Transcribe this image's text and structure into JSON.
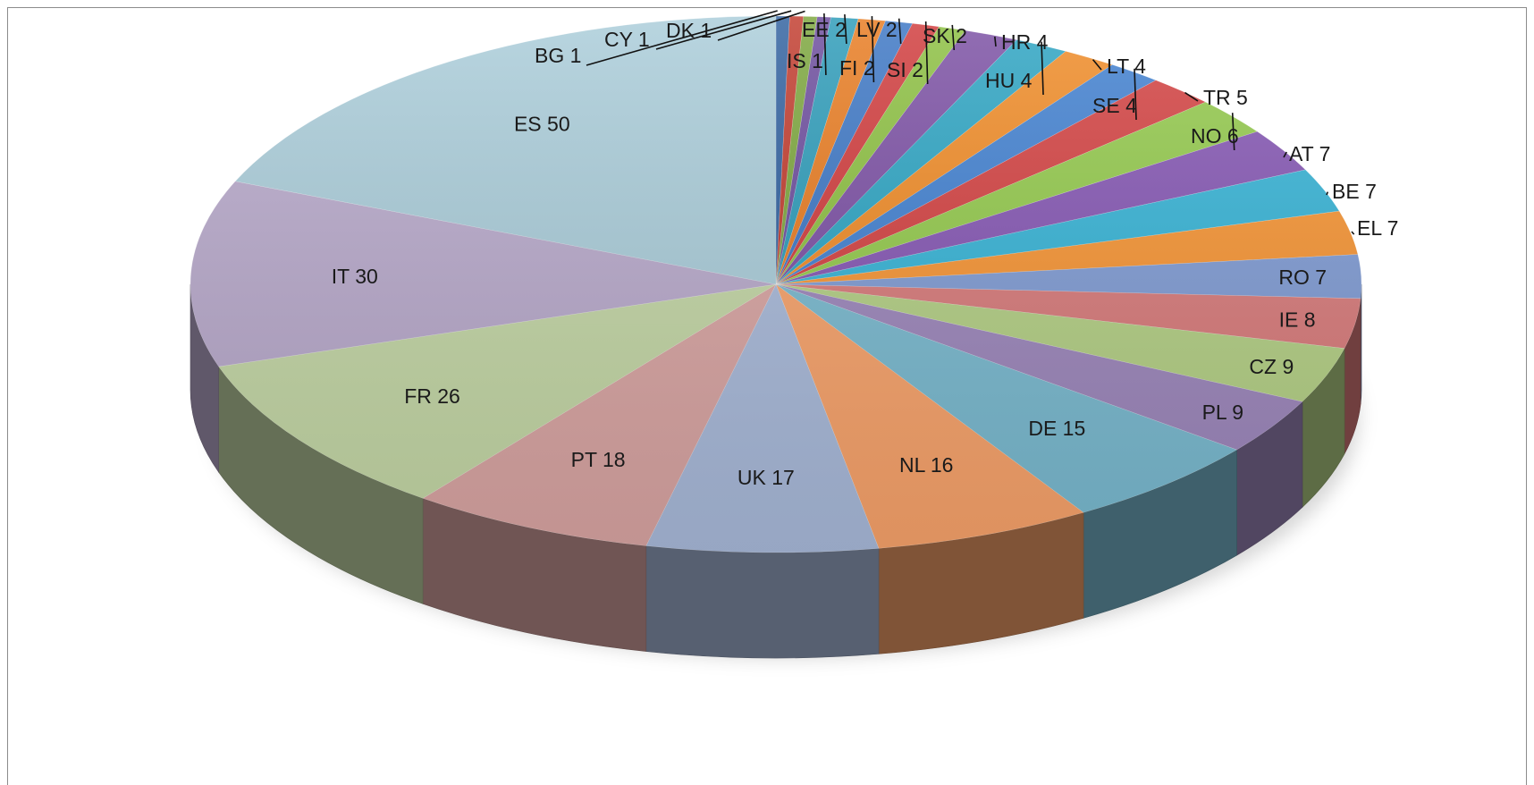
{
  "chart_data": {
    "type": "pie",
    "style": "3d-exploded-perspective",
    "title": "",
    "legend": "none",
    "data_labels": "category and value",
    "slices": [
      {
        "label": "BG",
        "value": 1,
        "text": "BG 1",
        "color": "#2e5f9e"
      },
      {
        "label": "CY",
        "value": 1,
        "text": "CY 1",
        "color": "#c0392b"
      },
      {
        "label": "DK",
        "value": 1,
        "text": "DK 1",
        "color": "#7aa53a"
      },
      {
        "label": "IS",
        "value": 1,
        "text": "IS 1",
        "color": "#6a4a9c"
      },
      {
        "label": "EE",
        "value": 2,
        "text": "EE 2",
        "color": "#2a9ab8"
      },
      {
        "label": "FI",
        "value": 2,
        "text": "FI 2",
        "color": "#e87a1e"
      },
      {
        "label": "LV",
        "value": 2,
        "text": "LV 2",
        "color": "#3a75c4"
      },
      {
        "label": "SI",
        "value": 2,
        "text": "SI 2",
        "color": "#d0393a"
      },
      {
        "label": "SK",
        "value": 2,
        "text": "SK 2",
        "color": "#8bbf3f"
      },
      {
        "label": "HR",
        "value": 4,
        "text": "HR 4",
        "color": "#7a4ea3"
      },
      {
        "label": "HU",
        "value": 4,
        "text": "HU 4",
        "color": "#2aa3c2"
      },
      {
        "label": "LT",
        "value": 4,
        "text": "LT 4",
        "color": "#f08a24"
      },
      {
        "label": "SE",
        "value": 4,
        "text": "SE 4",
        "color": "#3f7fd0"
      },
      {
        "label": "TR",
        "value": 5,
        "text": "TR 5",
        "color": "#d33f3f"
      },
      {
        "label": "NO",
        "value": 6,
        "text": "NO 6",
        "color": "#92c94a"
      },
      {
        "label": "AT",
        "value": 7,
        "text": "AT 7",
        "color": "#8455b3"
      },
      {
        "label": "BE",
        "value": 7,
        "text": "BE 7",
        "color": "#34b3d6"
      },
      {
        "label": "EL",
        "value": 7,
        "text": "EL 7",
        "color": "#f79432"
      },
      {
        "label": "RO",
        "value": 7,
        "text": "RO 7",
        "color": "#7f9bd4"
      },
      {
        "label": "IE",
        "value": 8,
        "text": "IE 8",
        "color": "#d87a7a"
      },
      {
        "label": "CZ",
        "value": 9,
        "text": "CZ 9",
        "color": "#b3cf84"
      },
      {
        "label": "PL",
        "value": 9,
        "text": "PL 9",
        "color": "#9c86bb"
      },
      {
        "label": "DE",
        "value": 15,
        "text": "DE 15",
        "color": "#79b9cf"
      },
      {
        "label": "NL",
        "value": 16,
        "text": "NL 16",
        "color": "#f7a26a"
      },
      {
        "label": "UK",
        "value": 17,
        "text": "UK 17",
        "color": "#a8b9d9"
      },
      {
        "label": "PT",
        "value": 18,
        "text": "PT 18",
        "color": "#d8a4a2"
      },
      {
        "label": "FR",
        "value": 26,
        "text": "FR 26",
        "color": "#c3d6a5"
      },
      {
        "label": "IT",
        "value": 30,
        "text": "IT 30",
        "color": "#b8a9cb"
      },
      {
        "label": "ES",
        "value": 50,
        "text": "ES 50",
        "color": "#a9ccd9"
      }
    ]
  }
}
